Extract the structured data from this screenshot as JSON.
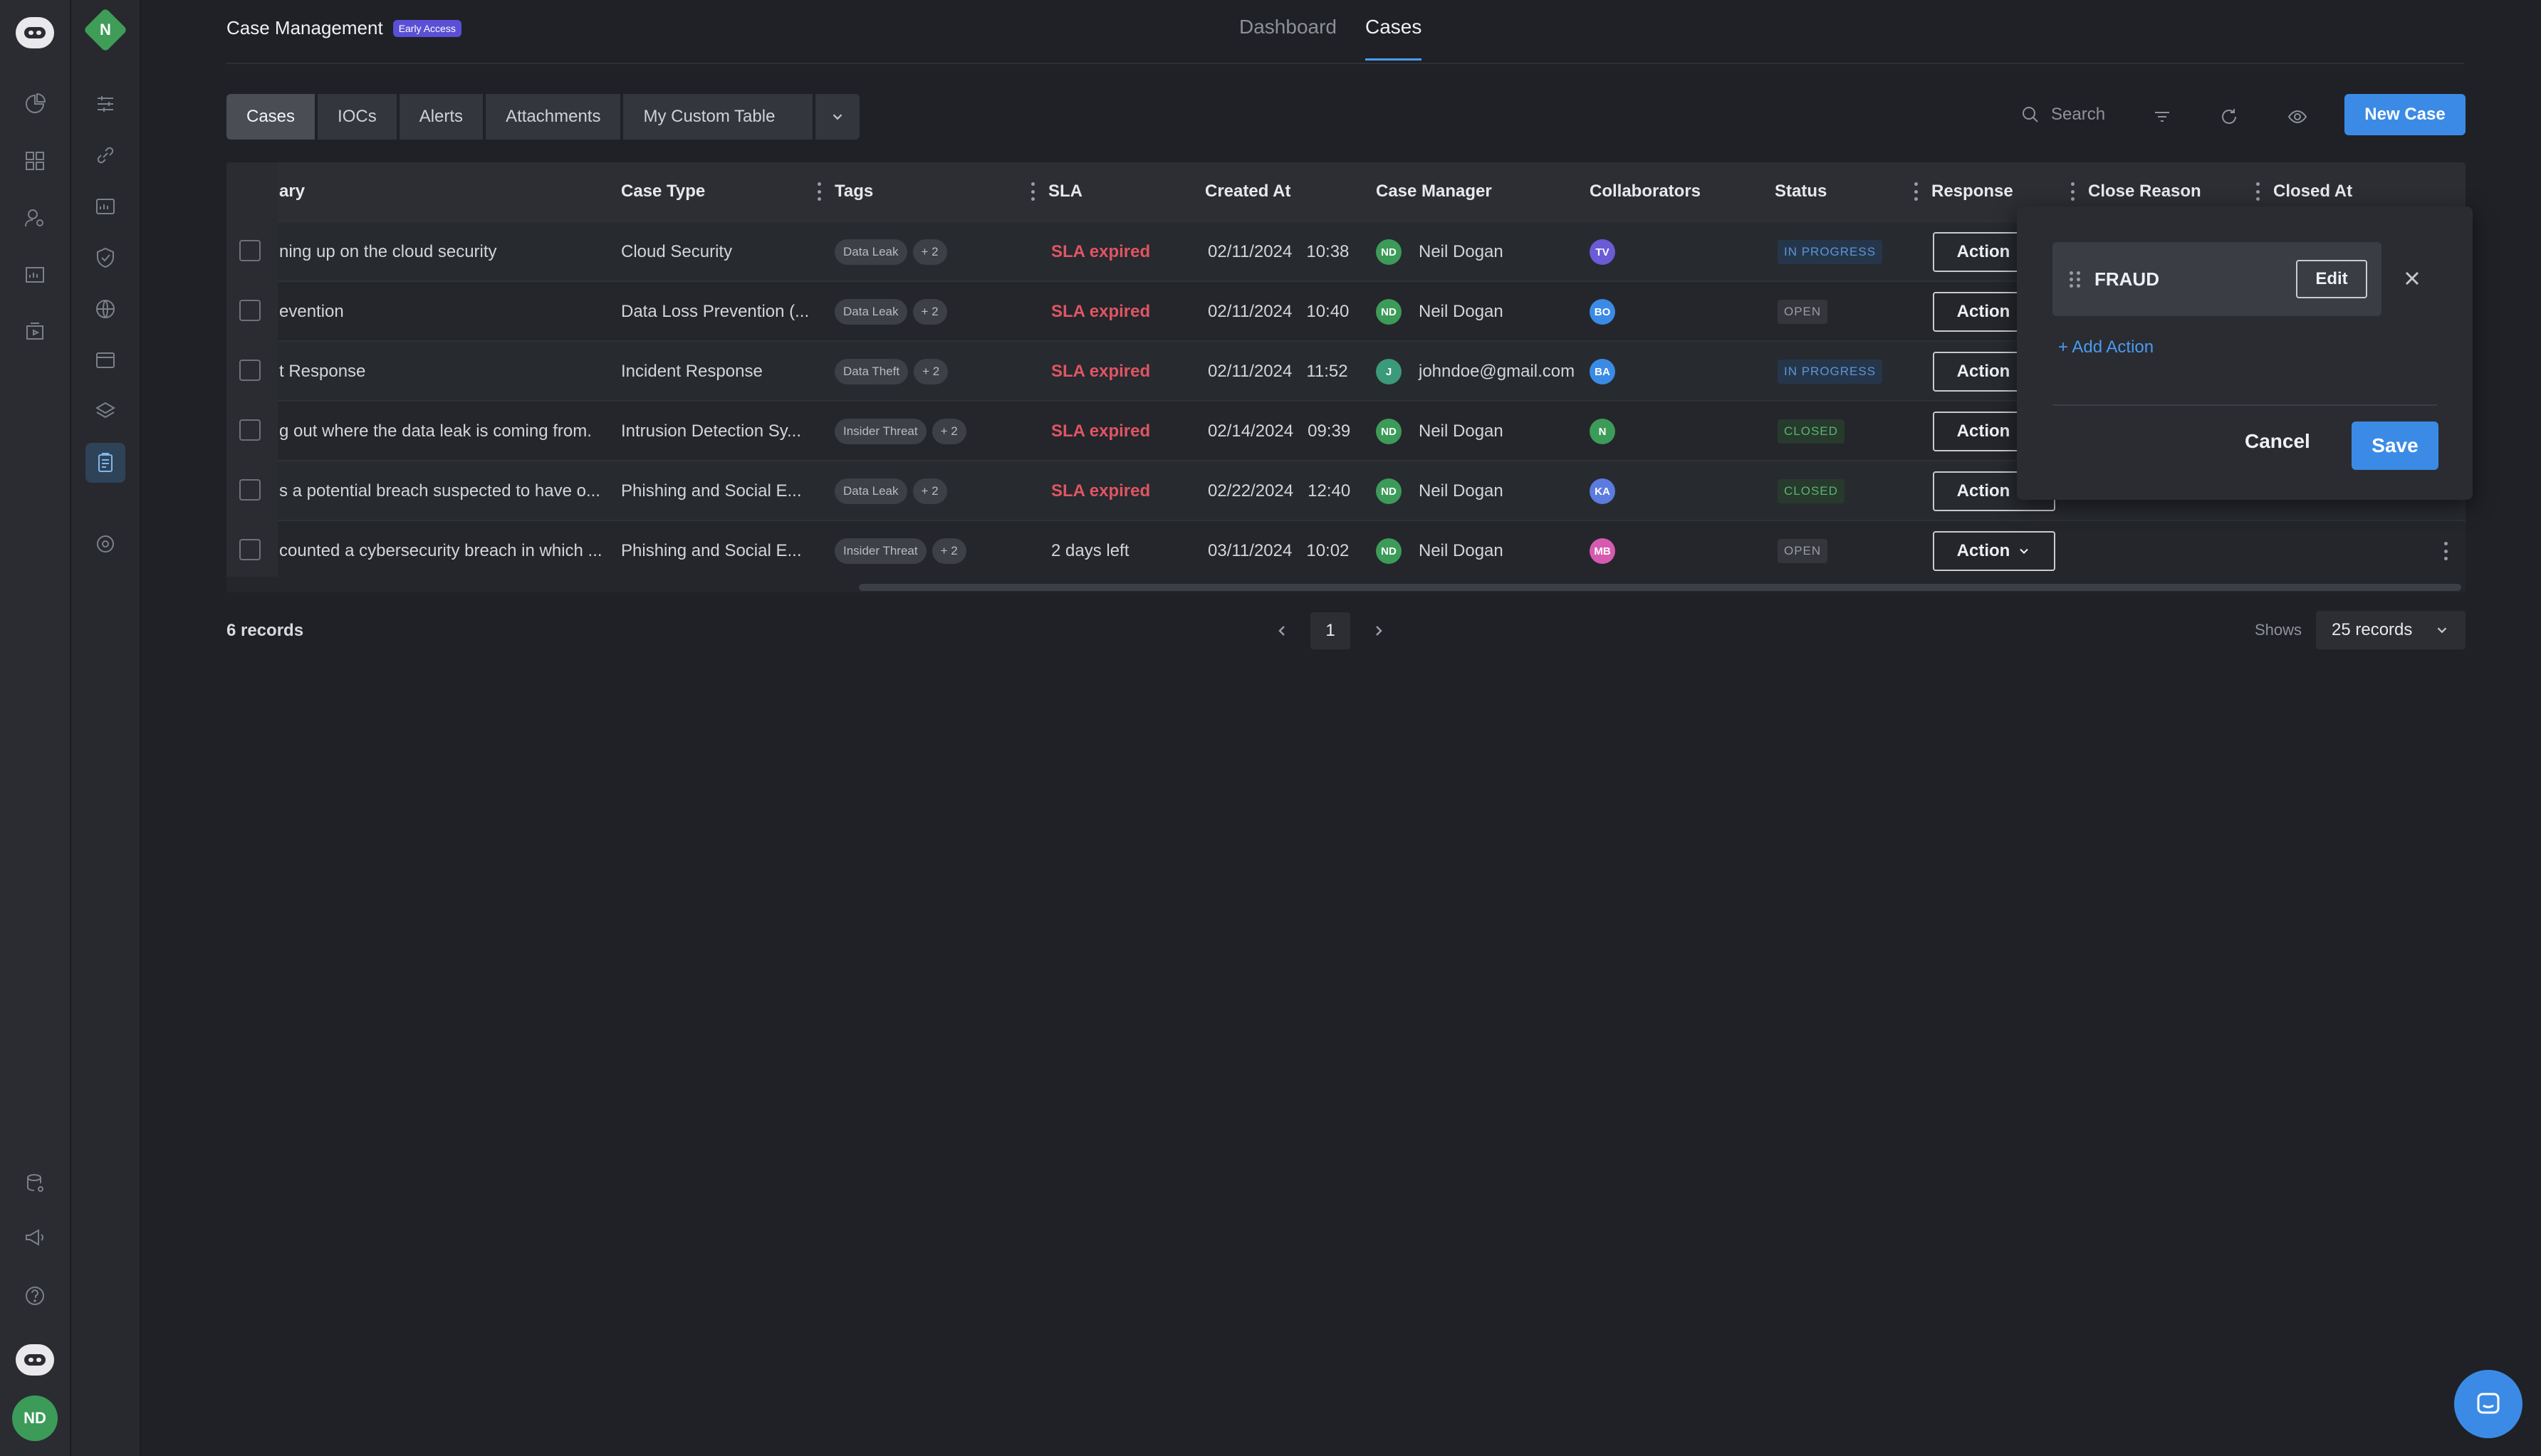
{
  "header": {
    "app_title": "Case Management",
    "early_badge": "Early Access",
    "workspace_initial": "N",
    "nav_tabs": [
      {
        "label": "Dashboard",
        "active": false
      },
      {
        "label": "Cases",
        "active": true
      }
    ]
  },
  "tabs": [
    {
      "label": "Cases",
      "active": true
    },
    {
      "label": "IOCs",
      "active": false
    },
    {
      "label": "Alerts",
      "active": false
    },
    {
      "label": "Attachments",
      "active": false
    },
    {
      "label": "My Custom Table",
      "active": false
    }
  ],
  "toolbar": {
    "search_placeholder": "Search",
    "new_case_label": "New Case"
  },
  "table": {
    "columns": [
      "ary",
      "Case Type",
      "Tags",
      "SLA",
      "Created At",
      "Case Manager",
      "Collaborators",
      "Status",
      "Response",
      "Close Reason",
      "Closed At"
    ],
    "rows": [
      {
        "summary": "ning up on the cloud security",
        "case_type": "Cloud Security",
        "tag": "Data Leak",
        "tag_more": "+ 2",
        "sla": "SLA expired",
        "sla_expired": true,
        "created_date": "02/11/2024",
        "created_time": "10:38",
        "manager_initials": "ND",
        "manager_color": "#3c9b58",
        "manager": "Neil Dogan",
        "collab": "TV",
        "collab_color": "#6b5bd6",
        "status": "IN PROGRESS",
        "status_kind": "prog",
        "response": "Action"
      },
      {
        "summary": "evention",
        "case_type": "Data Loss Prevention (...",
        "tag": "Data Leak",
        "tag_more": "+ 2",
        "sla": "SLA expired",
        "sla_expired": true,
        "created_date": "02/11/2024",
        "created_time": "10:40",
        "manager_initials": "ND",
        "manager_color": "#3c9b58",
        "manager": "Neil Dogan",
        "collab": "BO",
        "collab_color": "#3b8be6",
        "status": "OPEN",
        "status_kind": "open",
        "response": "Action"
      },
      {
        "summary": "t Response",
        "case_type": "Incident Response",
        "tag": "Data Theft",
        "tag_more": "+ 2",
        "sla": "SLA expired",
        "sla_expired": true,
        "created_date": "02/11/2024",
        "created_time": "11:52",
        "manager_initials": "J",
        "manager_color": "#3a9a7a",
        "manager": "johndoe@gmail.com",
        "collab": "BA",
        "collab_color": "#3b8be6",
        "status": "IN PROGRESS",
        "status_kind": "prog",
        "response": "Action"
      },
      {
        "summary": "g out where the data leak is coming from.",
        "case_type": "Intrusion Detection Sy...",
        "tag": "Insider Threat",
        "tag_more": "+ 2",
        "sla": "SLA expired",
        "sla_expired": true,
        "created_date": "02/14/2024",
        "created_time": "09:39",
        "manager_initials": "ND",
        "manager_color": "#3c9b58",
        "manager": "Neil Dogan",
        "collab": "N",
        "collab_color": "#3c9b58",
        "status": "CLOSED",
        "status_kind": "closed",
        "response": "Action"
      },
      {
        "summary": "s a potential breach suspected to have o...",
        "case_type": "Phishing and Social E...",
        "tag": "Data Leak",
        "tag_more": "+ 2",
        "sla": "SLA expired",
        "sla_expired": true,
        "created_date": "02/22/2024",
        "created_time": "12:40",
        "manager_initials": "ND",
        "manager_color": "#3c9b58",
        "manager": "Neil Dogan",
        "collab": "KA",
        "collab_color": "#5b7be0",
        "status": "CLOSED",
        "status_kind": "closed",
        "response": "Action"
      },
      {
        "summary": "counted a cybersecurity breach in which ...",
        "case_type": "Phishing and Social E...",
        "tag": "Insider Threat",
        "tag_more": "+ 2",
        "sla": "2 days left",
        "sla_expired": false,
        "created_date": "03/11/2024",
        "created_time": "10:02",
        "manager_initials": "ND",
        "manager_color": "#3c9b58",
        "manager": "Neil Dogan",
        "collab": "MB",
        "collab_color": "#d65bb0",
        "status": "OPEN",
        "status_kind": "open",
        "response": "Action"
      }
    ]
  },
  "footer": {
    "record_count": "6 records",
    "page": "1",
    "shows_label": "Shows",
    "per_page": "25 records"
  },
  "popover": {
    "item_label": "FRAUD",
    "edit_label": "Edit",
    "add_action_label": "+ Add Action",
    "cancel_label": "Cancel",
    "save_label": "Save"
  },
  "user": {
    "initials": "ND"
  },
  "colors": {
    "accent": "#3b8be6",
    "danger": "#e05563",
    "brand_green": "#3f9d58"
  }
}
